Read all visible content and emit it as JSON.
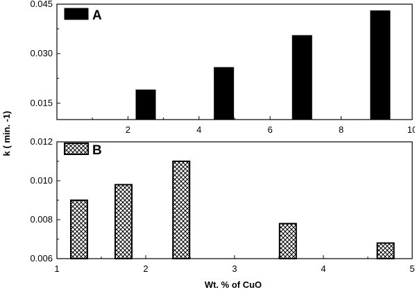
{
  "chart_data": [
    {
      "type": "bar",
      "panel": "A",
      "legend_label": "A",
      "legend_placement": "top-left",
      "fill": "solid",
      "color": "#000000",
      "x": [
        2.5,
        4.7,
        6.9,
        9.1
      ],
      "values": [
        0.019,
        0.0258,
        0.0355,
        0.043
      ],
      "xlim": [
        0,
        10
      ],
      "ylim": [
        0.01,
        0.045
      ],
      "xticks": [
        "2",
        "4",
        "6",
        "8",
        "10"
      ],
      "xtick_values": [
        2,
        4,
        6,
        8,
        10
      ],
      "yticks": [
        "0.015",
        "0.030",
        "0.045"
      ],
      "ytick_values": [
        0.015,
        0.03,
        0.045
      ]
    },
    {
      "type": "bar",
      "panel": "B",
      "legend_label": "B",
      "legend_placement": "top-left",
      "fill": "crosshatch",
      "color": "#000000",
      "x": [
        1.25,
        1.75,
        2.4,
        3.6,
        4.7
      ],
      "values": [
        0.009,
        0.0098,
        0.011,
        0.0078,
        0.0068
      ],
      "xlim": [
        1,
        5
      ],
      "ylim": [
        0.006,
        0.012
      ],
      "xticks": [
        "1",
        "2",
        "3",
        "4",
        "5"
      ],
      "xtick_values": [
        1,
        2,
        3,
        4,
        5
      ],
      "yticks": [
        "0.006",
        "0.008",
        "0.010",
        "0.012"
      ],
      "ytick_values": [
        0.006,
        0.008,
        0.01,
        0.012
      ]
    }
  ],
  "labels": {
    "ylabel": "k ( min. -1)",
    "xlabel": "Wt. % of CuO"
  },
  "colors": {
    "axis": "#000000",
    "background": "#ffffff"
  }
}
